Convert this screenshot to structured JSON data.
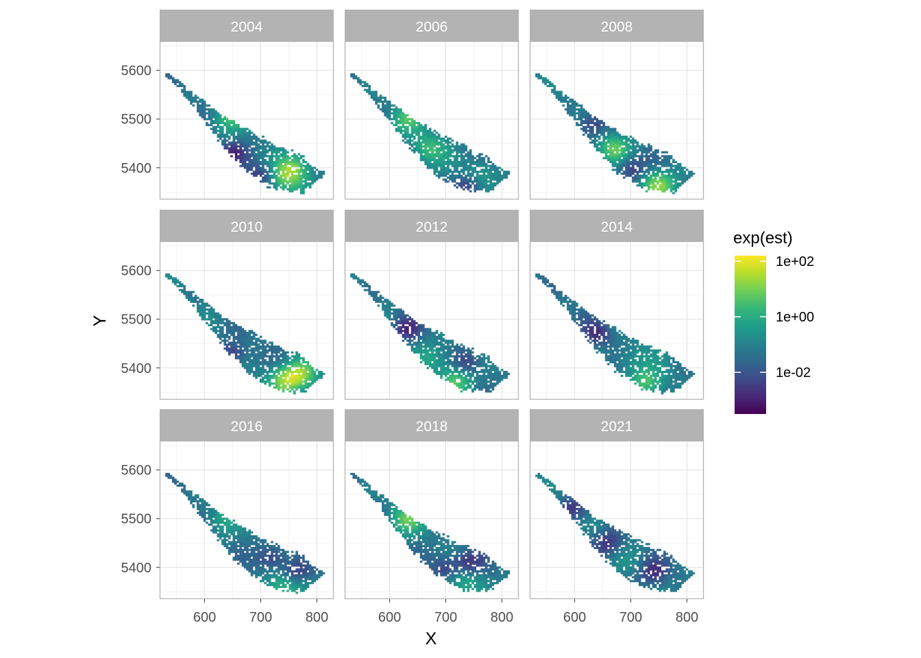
{
  "chart_data": {
    "type": "heatmap",
    "description_kind": "faceted spatial raster map",
    "xlabel": "X",
    "ylabel": "Y",
    "xlim": [
      520,
      830
    ],
    "ylim": [
      5335,
      5660
    ],
    "x_ticks": [
      600,
      700,
      800
    ],
    "x_tick_labels": [
      "600",
      "700",
      "800"
    ],
    "y_ticks": [
      5400,
      5500,
      5600
    ],
    "y_tick_labels": [
      "5400",
      "5500",
      "5600"
    ],
    "grid": true,
    "facets": [
      {
        "label": "2004",
        "hotspots": [
          [
            760,
            5400,
            2.0
          ],
          [
            640,
            5500,
            1.2
          ],
          [
            740,
            5375,
            1.5
          ]
        ],
        "lows": [
          [
            650,
            5430
          ],
          [
            700,
            5385
          ]
        ]
      },
      {
        "label": "2006",
        "hotspots": [
          [
            630,
            5500,
            1.4
          ],
          [
            670,
            5440,
            1.6
          ],
          [
            760,
            5390,
            1.0
          ]
        ],
        "lows": [
          [
            740,
            5360
          ]
        ]
      },
      {
        "label": "2008",
        "hotspots": [
          [
            670,
            5440,
            1.8
          ],
          [
            750,
            5365,
            2.2
          ]
        ],
        "lows": [
          [
            630,
            5490
          ],
          [
            700,
            5400
          ]
        ]
      },
      {
        "label": "2010",
        "hotspots": [
          [
            770,
            5385,
            2.2
          ],
          [
            740,
            5375,
            1.8
          ]
        ],
        "lows": [
          [
            650,
            5430
          ]
        ]
      },
      {
        "label": "2012",
        "hotspots": [
          [
            720,
            5375,
            1.8
          ],
          [
            680,
            5420,
            1.0
          ]
        ],
        "lows": [
          [
            630,
            5480
          ],
          [
            740,
            5410
          ]
        ]
      },
      {
        "label": "2014",
        "hotspots": [
          [
            730,
            5370,
            1.8
          ],
          [
            700,
            5420,
            0.8
          ]
        ],
        "lows": [
          [
            640,
            5470
          ]
        ]
      },
      {
        "label": "2016",
        "hotspots": [
          [
            740,
            5360,
            1.8
          ],
          [
            630,
            5500,
            1.0
          ]
        ],
        "lows": [
          [
            720,
            5420
          ],
          [
            760,
            5390
          ]
        ]
      },
      {
        "label": "2018",
        "hotspots": [
          [
            630,
            5500,
            1.8
          ],
          [
            730,
            5370,
            1.2
          ]
        ],
        "lows": [
          [
            740,
            5410
          ],
          [
            700,
            5400
          ]
        ]
      },
      {
        "label": "2021",
        "hotspots": [
          [
            700,
            5420,
            0.2
          ]
        ],
        "lows": [
          [
            740,
            5390
          ],
          [
            660,
            5450
          ],
          [
            600,
            5520
          ]
        ]
      }
    ],
    "legend": {
      "title": "exp(est)",
      "placement": "right",
      "scale": "log10",
      "palette": "viridis",
      "min_log10": -3.5,
      "max_log10": 2.2,
      "breaks_log10": [
        2,
        0,
        -2
      ],
      "break_labels": [
        "1e+02",
        "1e+00",
        "1e-02"
      ]
    }
  },
  "colors": {
    "strip_background": "#b3b3b3",
    "panel_border": "#b3b3b3",
    "grid_major": "#e0e0e0",
    "grid_minor": "#f2f2f2",
    "viridis": [
      "#440154",
      "#482878",
      "#3e4a89",
      "#31688e",
      "#26828e",
      "#1f9e89",
      "#35b779",
      "#6ece58",
      "#b5de2b",
      "#fde725"
    ]
  }
}
